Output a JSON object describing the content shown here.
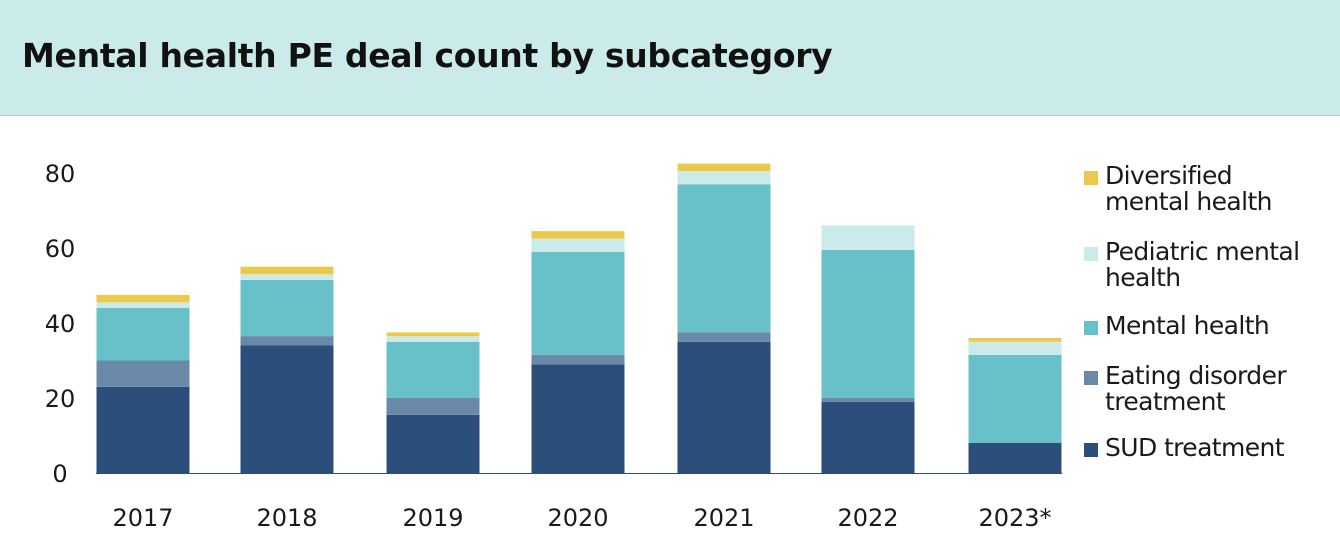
{
  "header": {
    "title": "Mental health PE deal count by subcategory"
  },
  "chart_data": {
    "type": "bar",
    "stacked": true,
    "title": "Mental health PE deal count by subcategory",
    "xlabel": "",
    "ylabel": "",
    "ylim": [
      0,
      80
    ],
    "yticks": [
      "0",
      "20",
      "40",
      "60",
      "80"
    ],
    "grid": false,
    "legend_position": "right",
    "categories": [
      "2017",
      "2018",
      "2019",
      "2020",
      "2021",
      "2022",
      "2023*"
    ],
    "series": [
      {
        "name": "SUD treatment",
        "color": "#2b4f7a",
        "values": [
          23,
          34,
          15.5,
          29,
          35,
          19,
          8
        ]
      },
      {
        "name": "Eating disorder treatment",
        "color": "#6a88a8",
        "values": [
          7,
          2.5,
          4.5,
          2.5,
          2.5,
          1,
          0
        ]
      },
      {
        "name": "Mental health",
        "color": "#68c0c8",
        "values": [
          14,
          15,
          15,
          27.5,
          39.5,
          39.5,
          23.5
        ]
      },
      {
        "name": "Pediatric mental health",
        "color": "#cbebea",
        "values": [
          1.5,
          1.5,
          1.5,
          3.5,
          3.5,
          6.5,
          3.5
        ]
      },
      {
        "name": "Diversified mental health",
        "color": "#ecc94b",
        "values": [
          2,
          2,
          1,
          2,
          2,
          0,
          1
        ]
      }
    ]
  },
  "legend_order": [
    "Diversified mental health",
    "Pediatric mental health",
    "Mental health",
    "Eating disorder treatment",
    "SUD treatment"
  ]
}
